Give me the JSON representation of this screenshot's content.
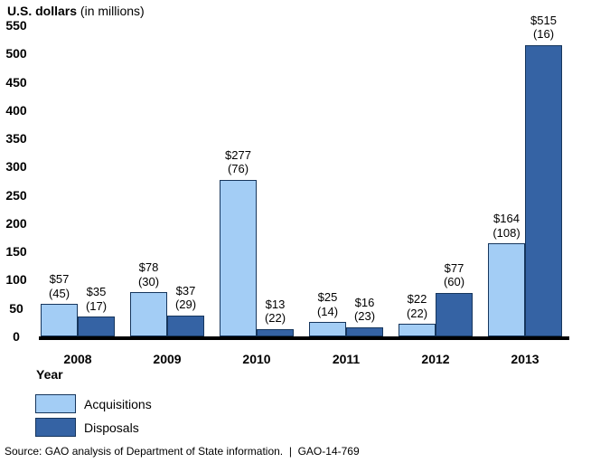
{
  "title": {
    "main": "U.S. dollars",
    "unit": " (in millions)"
  },
  "chart_data": {
    "type": "bar",
    "title": "U.S. dollars (in millions)",
    "xlabel": "Year",
    "ylabel": "U.S. dollars (in millions)",
    "ylim": [
      0,
      550
    ],
    "ytick_step": 50,
    "grid": false,
    "legend_position": "bottom-left",
    "categories": [
      "2008",
      "2009",
      "2010",
      "2011",
      "2012",
      "2013"
    ],
    "series": [
      {
        "name": "Acquisitions",
        "color": "#a3cdf5",
        "border_color": "#16365d",
        "values": [
          57,
          78,
          277,
          25,
          22,
          164
        ],
        "counts": [
          45,
          30,
          76,
          14,
          22,
          108
        ],
        "bar_labels": [
          [
            "$57",
            "(45)"
          ],
          [
            "$78",
            "(30)"
          ],
          [
            "$277",
            "(76)"
          ],
          [
            "$25",
            "(14)"
          ],
          [
            "$22",
            "(22)"
          ],
          [
            "$164",
            "(108)"
          ]
        ]
      },
      {
        "name": "Disposals",
        "color": "#3563a4",
        "border_color": "#16365d",
        "values": [
          35,
          37,
          13,
          16,
          77,
          515
        ],
        "counts": [
          17,
          29,
          22,
          23,
          60,
          16
        ],
        "bar_labels": [
          [
            "$35",
            "(17)"
          ],
          [
            "$37",
            "(29)"
          ],
          [
            "$13",
            "(22)"
          ],
          [
            "$16",
            "(23)"
          ],
          [
            "$77",
            "(60)"
          ],
          [
            "$515",
            "(16)"
          ]
        ]
      }
    ],
    "axis_color": "#000000"
  },
  "source": "Source: GAO analysis of Department of State information.  |  GAO-14-769"
}
